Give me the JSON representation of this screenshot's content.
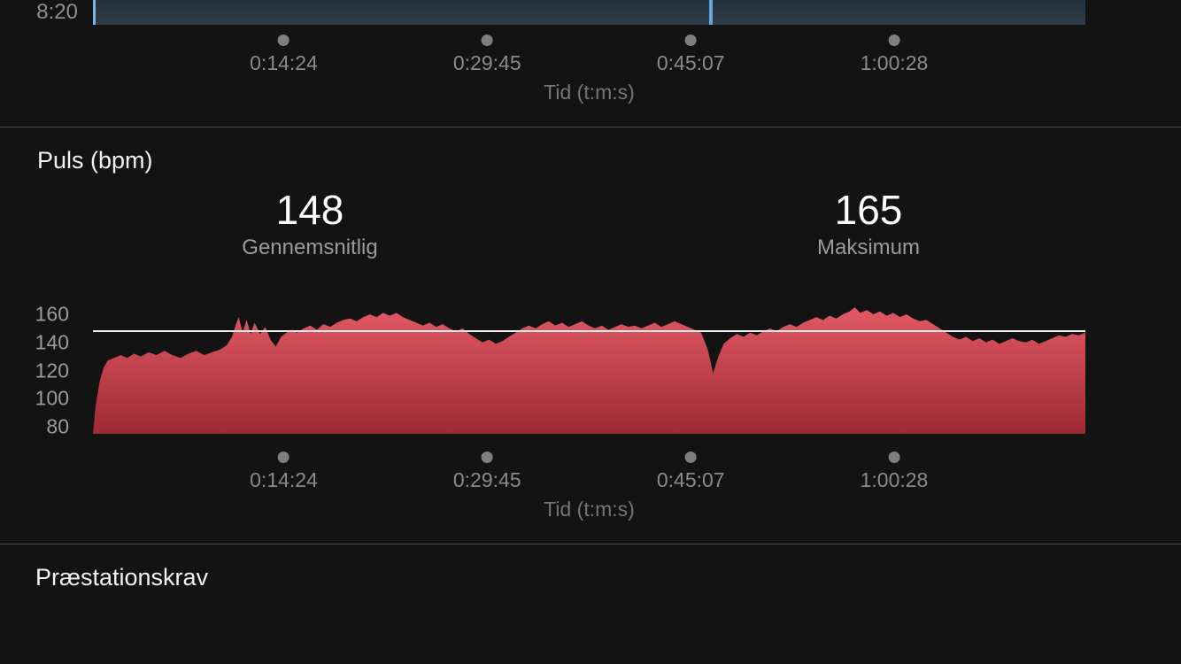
{
  "app": {
    "background": "#131313",
    "divider_color": "#4c4c4c"
  },
  "pace_chart": {
    "y_tick_label": "8:20",
    "bar": {
      "fill_top": "#24323d",
      "fill_bottom": "#2d3c48",
      "left_edge_color": "#7fb3d8"
    },
    "cursor": {
      "color": "#64a5da",
      "seconds": 2798
    }
  },
  "time_axis": {
    "title": "Tid (t:m:s)",
    "total_seconds": 4494,
    "ticks": [
      {
        "label": "0:14:24",
        "seconds": 864
      },
      {
        "label": "0:29:45",
        "seconds": 1785
      },
      {
        "label": "0:45:07",
        "seconds": 2707
      },
      {
        "label": "1:00:28",
        "seconds": 3628
      }
    ],
    "dot_color": "#7f7f7f",
    "label_color": "#8a8a8a",
    "title_color": "#757575"
  },
  "heart_rate": {
    "section_title": "Puls (bpm)",
    "stats": [
      {
        "value": "148",
        "label": "Gennemsnitlig"
      },
      {
        "value": "165",
        "label": "Maksimum"
      }
    ],
    "avg_bpm": 148,
    "max_bpm": 165,
    "y_ticks": [
      160,
      140,
      120,
      100,
      80
    ],
    "ylim": [
      75,
      166.3
    ],
    "area_top_color": "#e25964",
    "area_bottom_color": "#9e2a34",
    "avg_line_color": "#ededed"
  },
  "performance": {
    "section_title": "Præstationskrav"
  },
  "chart_data": [
    {
      "type": "area",
      "title": "Partially visible chart (bottom edge only)",
      "xlabel": "Tid (t:m:s)",
      "x_tick_labels": [
        "0:14:24",
        "0:29:45",
        "0:45:07",
        "1:00:28"
      ],
      "y_tick_labels": [
        "8:20"
      ],
      "legend": "none",
      "grid": false
    },
    {
      "type": "area",
      "title": "Puls (bpm)",
      "xlabel": "Tid (t:m:s)",
      "ylabel": "Puls (bpm)",
      "x_tick_labels": [
        "0:14:24",
        "0:29:45",
        "0:45:07",
        "1:00:28"
      ],
      "y_ticks": [
        160,
        140,
        120,
        100,
        80
      ],
      "ylim": [
        75,
        166.3
      ],
      "avg": 148,
      "max": 165,
      "duration_min": 74.9,
      "avg_reference_line": 148,
      "legend": "none",
      "grid": false,
      "series": [
        {
          "name": "Puls",
          "points": [
            [
              0,
              75
            ],
            [
              0.2,
              95
            ],
            [
              0.5,
              112
            ],
            [
              0.8,
              122
            ],
            [
              1.1,
              127
            ],
            [
              1.6,
              129
            ],
            [
              2.1,
              131
            ],
            [
              2.6,
              129
            ],
            [
              3.1,
              132
            ],
            [
              3.6,
              130
            ],
            [
              4.2,
              133
            ],
            [
              4.8,
              131
            ],
            [
              5.4,
              134
            ],
            [
              6,
              131
            ],
            [
              6.6,
              129
            ],
            [
              7.2,
              132
            ],
            [
              7.8,
              134
            ],
            [
              8.4,
              131
            ],
            [
              9,
              133
            ],
            [
              9.6,
              135
            ],
            [
              10.1,
              138
            ],
            [
              10.5,
              144
            ],
            [
              10.8,
              153
            ],
            [
              11,
              158
            ],
            [
              11.3,
              147
            ],
            [
              11.6,
              156
            ],
            [
              11.9,
              146
            ],
            [
              12.2,
              154
            ],
            [
              12.6,
              146
            ],
            [
              13,
              151
            ],
            [
              13.4,
              142
            ],
            [
              13.8,
              137
            ],
            [
              14.2,
              144
            ],
            [
              14.6,
              147
            ],
            [
              15,
              149
            ],
            [
              15.4,
              147
            ],
            [
              15.9,
              150
            ],
            [
              16.4,
              152
            ],
            [
              16.9,
              149
            ],
            [
              17.4,
              153
            ],
            [
              17.9,
              151
            ],
            [
              18.4,
              154
            ],
            [
              18.9,
              156
            ],
            [
              19.4,
              157
            ],
            [
              19.9,
              155
            ],
            [
              20.4,
              158
            ],
            [
              20.9,
              160
            ],
            [
              21.4,
              158
            ],
            [
              21.9,
              161
            ],
            [
              22.4,
              159
            ],
            [
              22.9,
              161
            ],
            [
              23.4,
              158
            ],
            [
              23.9,
              156
            ],
            [
              24.4,
              154
            ],
            [
              24.9,
              152
            ],
            [
              25.4,
              154
            ],
            [
              25.9,
              151
            ],
            [
              26.4,
              153
            ],
            [
              26.9,
              150
            ],
            [
              27.4,
              148
            ],
            [
              27.9,
              150
            ],
            [
              28.4,
              146
            ],
            [
              28.9,
              143
            ],
            [
              29.4,
              140
            ],
            [
              29.9,
              142
            ],
            [
              30.4,
              139
            ],
            [
              30.9,
              141
            ],
            [
              31.4,
              144
            ],
            [
              31.9,
              147
            ],
            [
              32.4,
              150
            ],
            [
              32.9,
              152
            ],
            [
              33.4,
              150
            ],
            [
              33.9,
              153
            ],
            [
              34.4,
              155
            ],
            [
              34.9,
              152
            ],
            [
              35.4,
              154
            ],
            [
              35.9,
              151
            ],
            [
              36.4,
              153
            ],
            [
              36.9,
              155
            ],
            [
              37.4,
              152
            ],
            [
              37.9,
              150
            ],
            [
              38.4,
              152
            ],
            [
              38.9,
              149
            ],
            [
              39.4,
              151
            ],
            [
              39.9,
              153
            ],
            [
              40.4,
              151
            ],
            [
              40.9,
              152
            ],
            [
              41.4,
              150
            ],
            [
              41.9,
              152
            ],
            [
              42.4,
              154
            ],
            [
              42.9,
              151
            ],
            [
              43.4,
              153
            ],
            [
              43.9,
              155
            ],
            [
              44.4,
              153
            ],
            [
              44.9,
              151
            ],
            [
              45.4,
              149
            ],
            [
              45.9,
              147
            ],
            [
              46.4,
              135
            ],
            [
              46.8,
              118
            ],
            [
              47.2,
              130
            ],
            [
              47.6,
              139
            ],
            [
              48.1,
              143
            ],
            [
              48.6,
              146
            ],
            [
              49.1,
              144
            ],
            [
              49.6,
              147
            ],
            [
              50.1,
              145
            ],
            [
              50.6,
              148
            ],
            [
              51.1,
              150
            ],
            [
              51.6,
              148
            ],
            [
              52.1,
              151
            ],
            [
              52.6,
              153
            ],
            [
              53.1,
              151
            ],
            [
              53.6,
              154
            ],
            [
              54.1,
              156
            ],
            [
              54.6,
              158
            ],
            [
              55.1,
              156
            ],
            [
              55.6,
              159
            ],
            [
              56.1,
              157
            ],
            [
              56.6,
              160
            ],
            [
              57.1,
              162
            ],
            [
              57.5,
              165
            ],
            [
              57.9,
              161
            ],
            [
              58.4,
              163
            ],
            [
              58.9,
              160
            ],
            [
              59.4,
              162
            ],
            [
              59.9,
              159
            ],
            [
              60.4,
              161
            ],
            [
              60.9,
              158
            ],
            [
              61.4,
              160
            ],
            [
              61.9,
              157
            ],
            [
              62.4,
              155
            ],
            [
              62.9,
              156
            ],
            [
              63.4,
              153
            ],
            [
              63.9,
              150
            ],
            [
              64.4,
              147
            ],
            [
              64.9,
              144
            ],
            [
              65.4,
              142
            ],
            [
              65.9,
              144
            ],
            [
              66.4,
              141
            ],
            [
              66.9,
              143
            ],
            [
              67.4,
              140
            ],
            [
              67.9,
              142
            ],
            [
              68.4,
              139
            ],
            [
              68.9,
              141
            ],
            [
              69.4,
              143
            ],
            [
              69.9,
              141
            ],
            [
              70.4,
              140
            ],
            [
              70.9,
              142
            ],
            [
              71.4,
              139
            ],
            [
              71.9,
              141
            ],
            [
              72.4,
              143
            ],
            [
              72.9,
              145
            ],
            [
              73.4,
              144
            ],
            [
              73.9,
              146
            ],
            [
              74.4,
              145
            ],
            [
              74.9,
              147
            ]
          ]
        }
      ]
    }
  ]
}
